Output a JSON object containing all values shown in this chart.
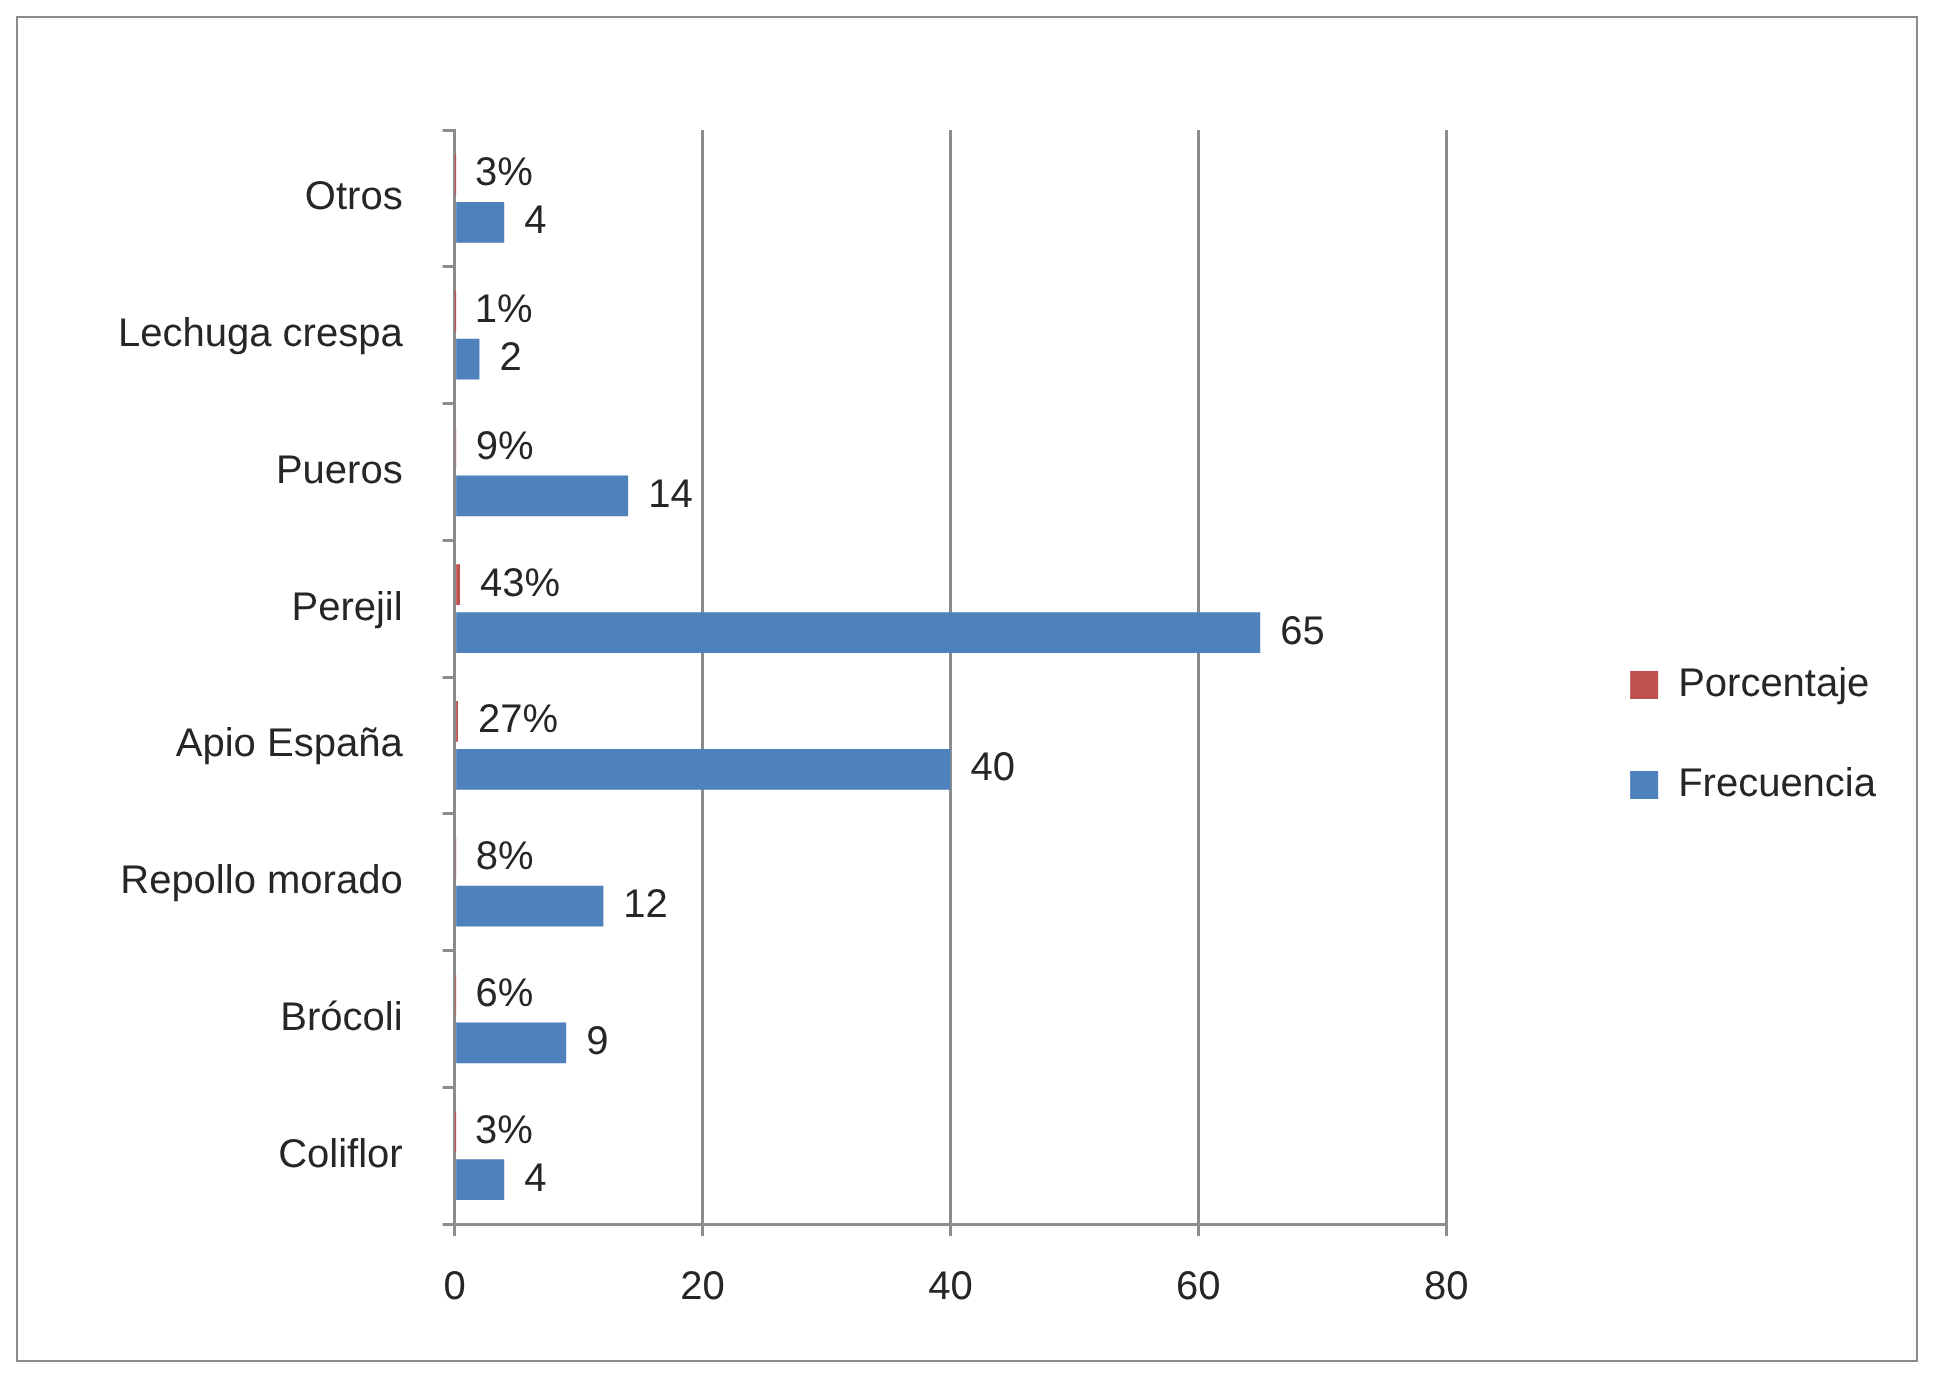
{
  "chart_data": {
    "type": "bar",
    "orientation": "horizontal",
    "categories": [
      "Otros",
      "Lechuga crespa",
      "Pueros",
      "Perejil",
      "Apio España",
      "Repollo morado",
      "Brócoli",
      "Coliflor"
    ],
    "series": [
      {
        "name": "Porcentaje",
        "color": "#c0504d",
        "values": [
          0.03,
          0.01,
          0.09,
          0.43,
          0.27,
          0.08,
          0.06,
          0.03
        ],
        "value_labels": [
          "3%",
          "1%",
          "9%",
          "43%",
          "27%",
          "8%",
          "6%",
          "3%"
        ]
      },
      {
        "name": "Frecuencia",
        "color": "#4f81bd",
        "values": [
          4,
          2,
          14,
          65,
          40,
          12,
          9,
          4
        ],
        "value_labels": [
          "4",
          "2",
          "14",
          "65",
          "40",
          "12",
          "9",
          "4"
        ]
      }
    ],
    "xlim": [
      0,
      80
    ],
    "xticks": [
      0,
      20,
      40,
      60,
      80
    ],
    "grid": "x",
    "legend": "right"
  }
}
